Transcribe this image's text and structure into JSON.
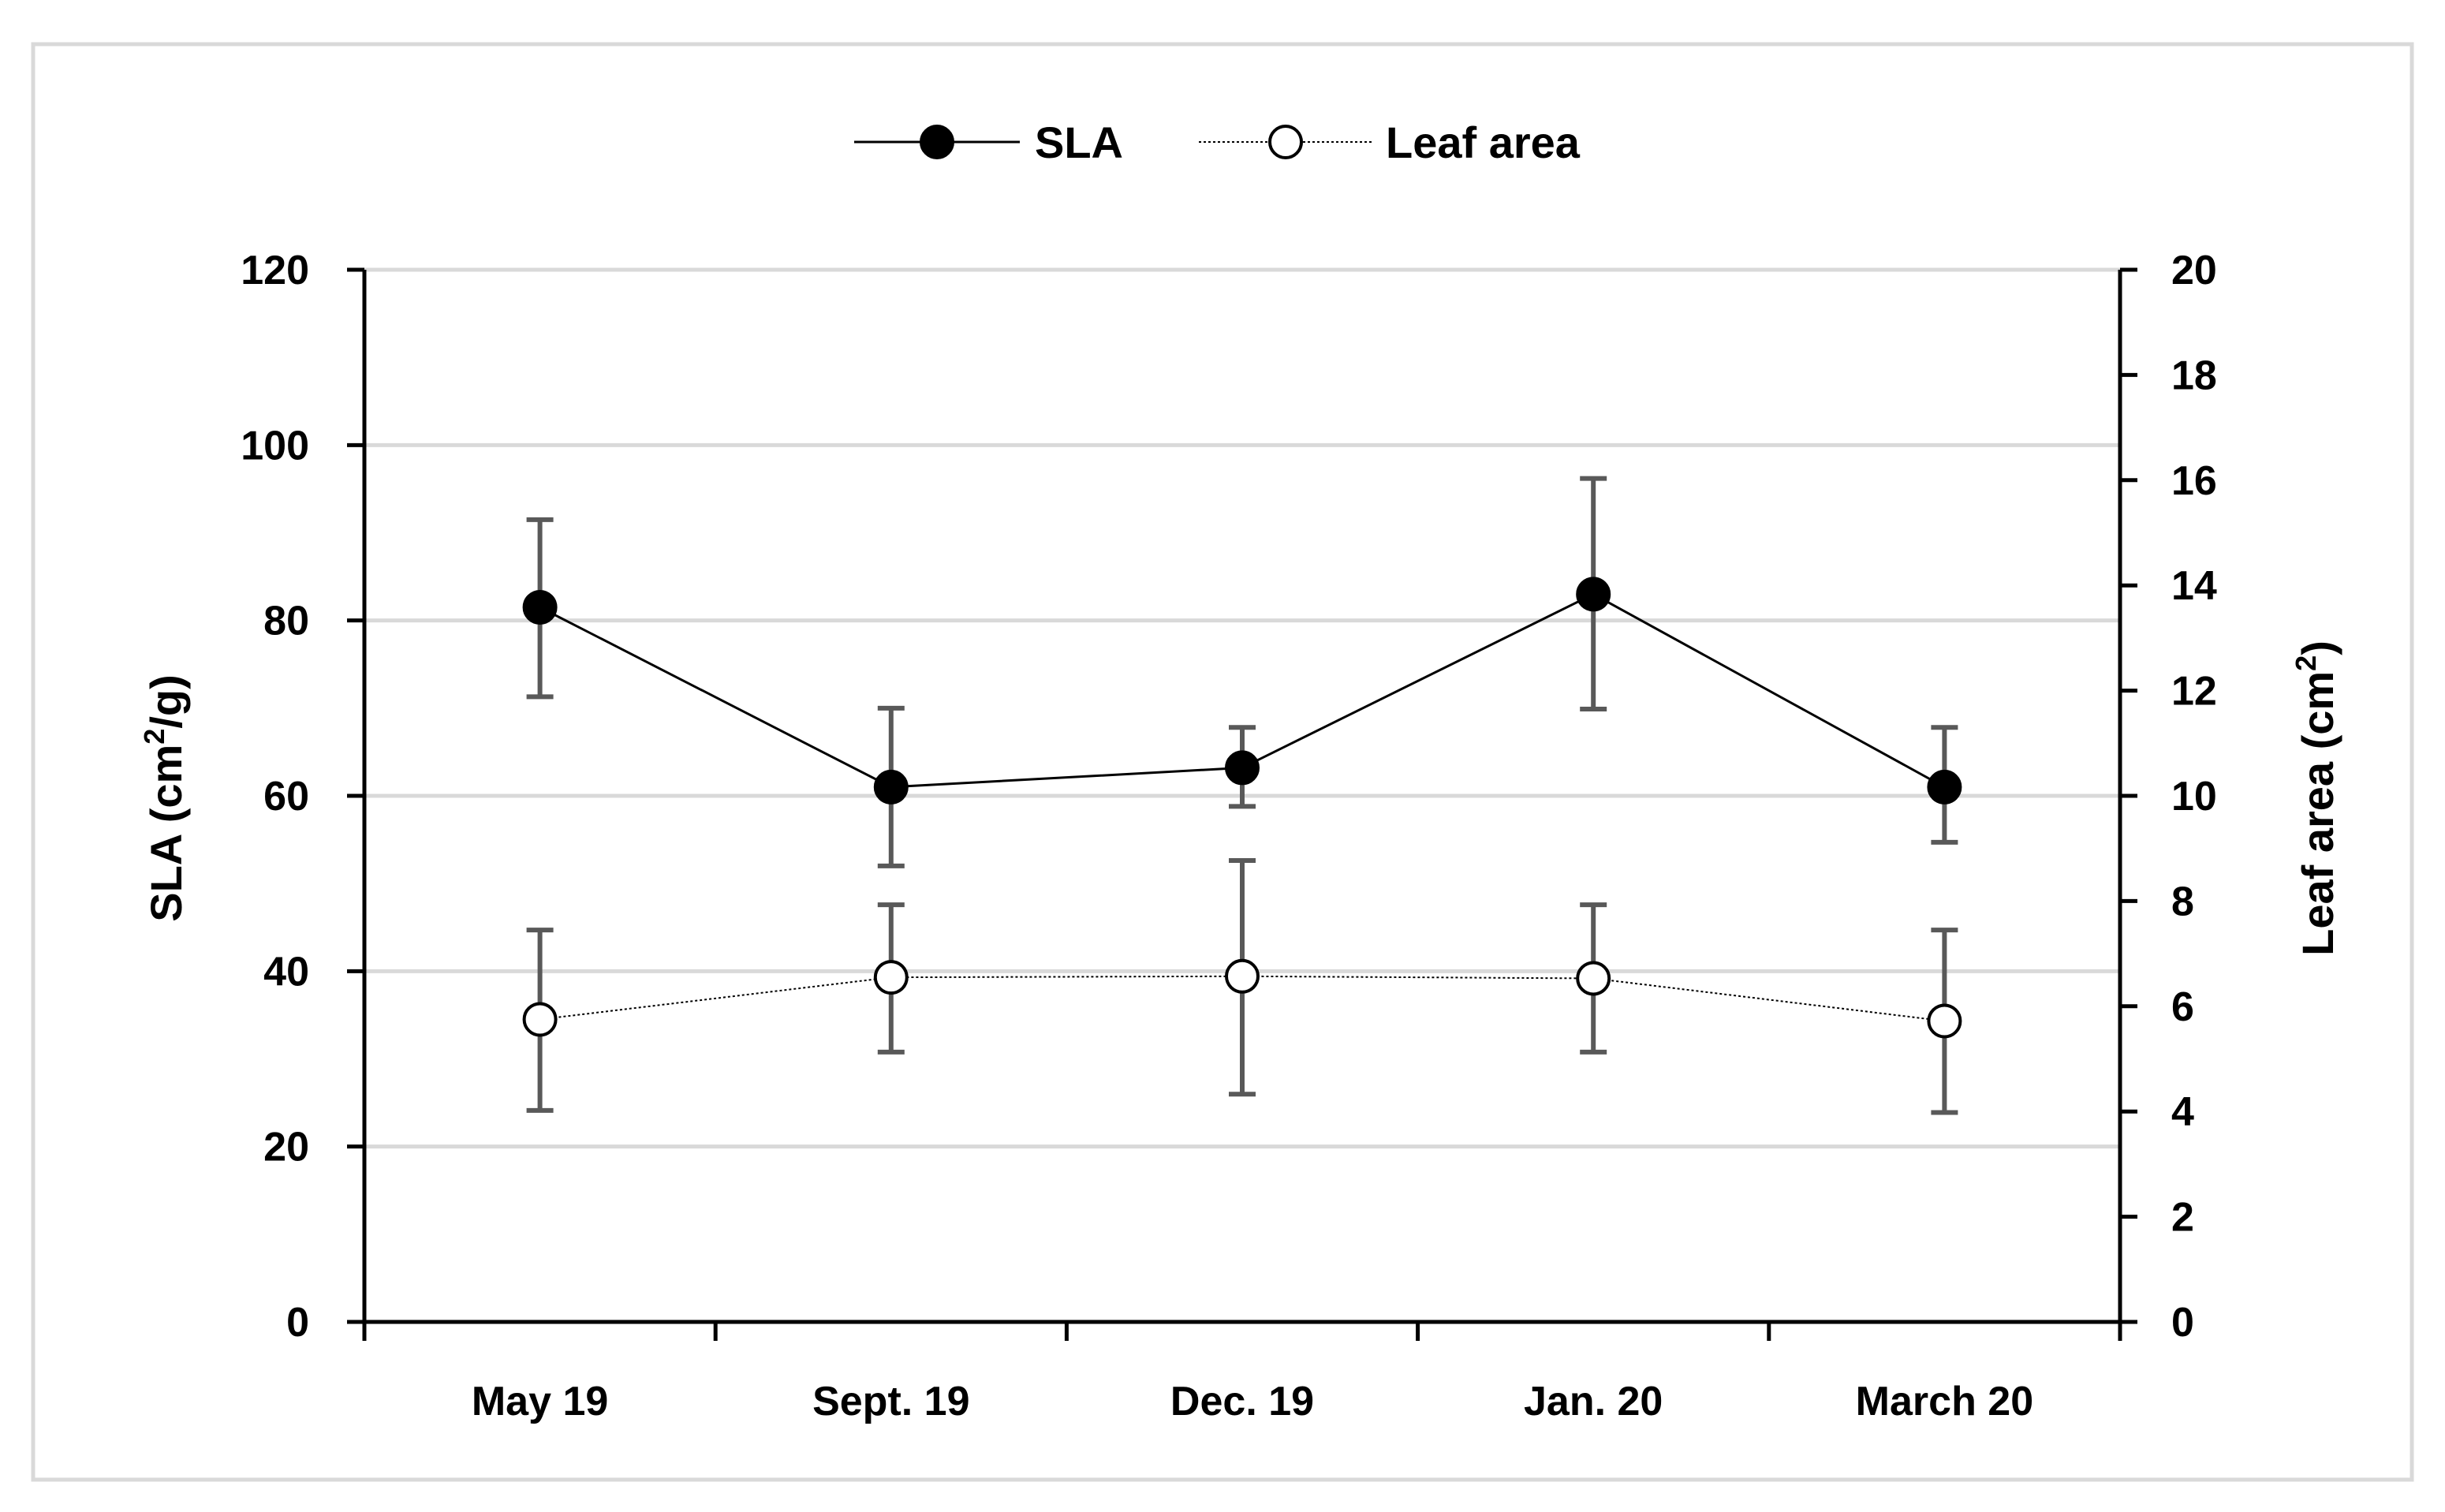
{
  "chart_data": {
    "type": "line",
    "categories": [
      "May 19",
      "Sept. 19",
      "Dec. 19",
      "Jan. 20",
      "March 20"
    ],
    "series": [
      {
        "name": "SLA",
        "axis": "left",
        "values": [
          81.5,
          61.0,
          63.2,
          83.0,
          61.0
        ],
        "error_upper": [
          91.5,
          70.0,
          67.8,
          96.2,
          67.8
        ],
        "error_lower": [
          71.3,
          52.0,
          58.8,
          69.9,
          54.7
        ],
        "marker": "filled-circle",
        "line": "solid"
      },
      {
        "name": "Leaf area",
        "axis": "right",
        "values": [
          5.75,
          6.55,
          6.57,
          6.53,
          5.72
        ],
        "error_upper": [
          7.45,
          7.93,
          8.77,
          7.93,
          7.45
        ],
        "error_lower": [
          4.02,
          5.13,
          4.33,
          5.13,
          3.98
        ],
        "marker": "open-circle",
        "line": "dotted"
      }
    ],
    "y_left": {
      "label_main": "SLA (cm",
      "label_sup": "2",
      "label_tail": "/g)",
      "lim": [
        0,
        120
      ],
      "ticks": [
        "0",
        "20",
        "40",
        "60",
        "80",
        "100",
        "120"
      ]
    },
    "y_right": {
      "label_main": "Leaf area (cm",
      "label_sup": "2",
      "label_tail": ")",
      "lim": [
        0,
        20
      ],
      "ticks": [
        "0",
        "2",
        "4",
        "6",
        "8",
        "10",
        "12",
        "14",
        "16",
        "18",
        "20"
      ]
    },
    "legend": {
      "position": "top-center",
      "items": [
        "SLA",
        "Leaf area"
      ]
    },
    "grid": true,
    "colors": {
      "line": "#000000",
      "marker_fill_sla": "#000000",
      "marker_fill_leaf": "#ffffff",
      "error_bar": "#595959",
      "grid": "#d9d9d9",
      "frame": "#d9d9d9"
    }
  }
}
